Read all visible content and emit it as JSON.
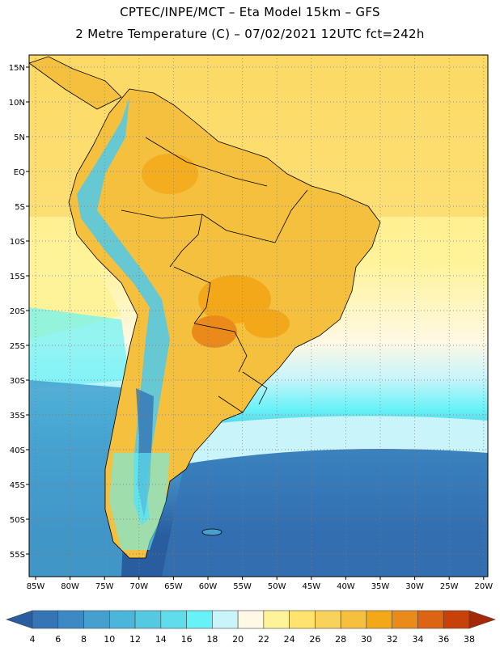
{
  "title_line1": "CPTEC/INPE/MCT –  Eta Model 15km – GFS",
  "title_line2": "2 Metre Temperature (C) – 07/02/2021 12UTC fct=242h",
  "lat_labels": [
    "15N",
    "10N",
    "5N",
    "EQ",
    "5S",
    "10S",
    "15S",
    "20S",
    "25S",
    "30S",
    "35S",
    "40S",
    "45S",
    "50S",
    "55S"
  ],
  "lon_labels": [
    "85W",
    "80W",
    "75W",
    "70W",
    "65W",
    "60W",
    "55W",
    "50W",
    "45W",
    "40W",
    "35W",
    "30W",
    "25W",
    "20W"
  ],
  "colorbar": {
    "ticks": [
      "4",
      "6",
      "8",
      "10",
      "12",
      "14",
      "16",
      "18",
      "20",
      "22",
      "24",
      "26",
      "28",
      "30",
      "32",
      "34",
      "36",
      "38"
    ],
    "colors": [
      "#2a5da0",
      "#3574b5",
      "#3d89c4",
      "#45a0cf",
      "#4cb6da",
      "#55c9e2",
      "#60dcea",
      "#66f2f7",
      "#c8f4fa",
      "#fff8e4",
      "#fff39a",
      "#ffe36e",
      "#f9d25c",
      "#f5c03e",
      "#f2a818",
      "#ea8a1a",
      "#dd6412",
      "#c8400a",
      "#a52808"
    ]
  }
}
